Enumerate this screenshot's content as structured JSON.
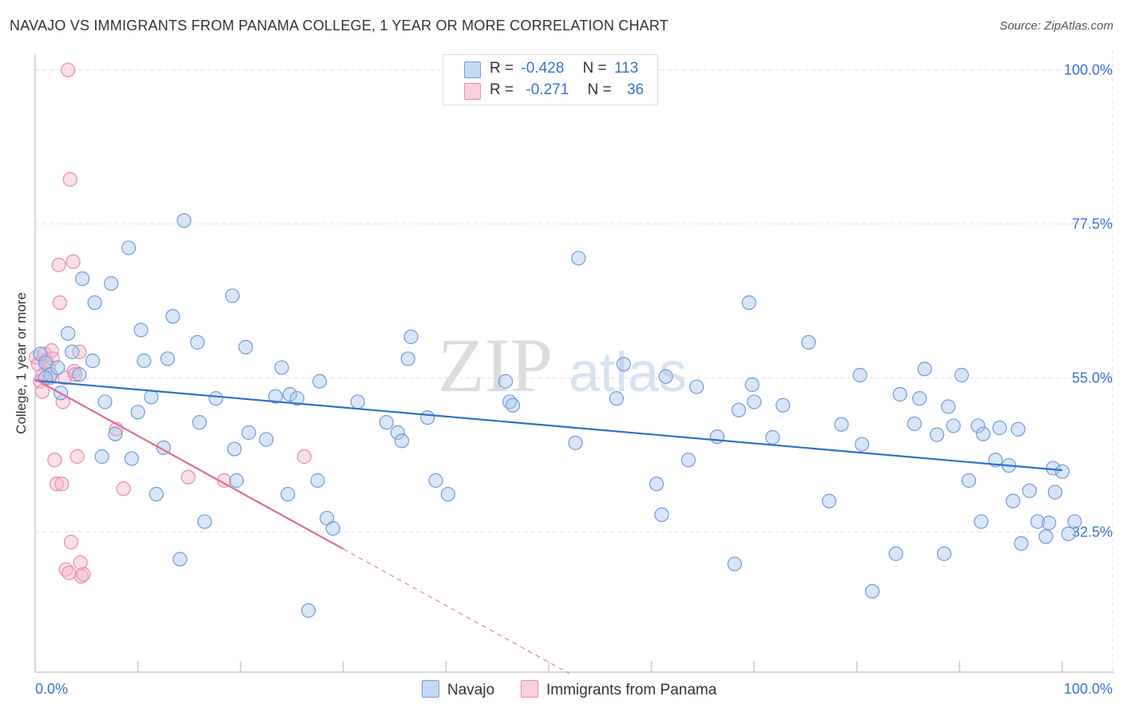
{
  "title": "NAVAJO VS IMMIGRANTS FROM PANAMA COLLEGE, 1 YEAR OR MORE CORRELATION CHART",
  "source": "Source: ZipAtlas.com",
  "watermark": {
    "zip": "ZIP",
    "atlas": "atlas"
  },
  "colors": {
    "navajo_fill": "#a9c7ee",
    "navajo_stroke": "#6f9bd8",
    "navajo_line": "#3070c8",
    "panama_fill": "#f5b9cd",
    "panama_stroke": "#e98aaa",
    "panama_line": "#e06a95",
    "tick_label": "#3b72c8",
    "grid": "#e2e2e2"
  },
  "legend": {
    "rows": [
      {
        "r_label": "R =",
        "r_value": "-0.428",
        "n_label": "N =",
        "n_value": "113"
      },
      {
        "r_label": "R =",
        "r_value": "-0.271",
        "n_label": "N =",
        "n_value": "36"
      }
    ]
  },
  "bottom_legend": {
    "navajo": "Navajo",
    "panama": "Immigrants from Panama"
  },
  "chart_data": {
    "type": "scatter",
    "title": "NAVAJO VS IMMIGRANTS FROM PANAMA COLLEGE, 1 YEAR OR MORE CORRELATION CHART",
    "xlabel": "",
    "ylabel": "College, 1 year or more",
    "xlim": [
      0,
      100
    ],
    "ylim": [
      12,
      103
    ],
    "x_tick_labels": [
      "0.0%",
      "100.0%"
    ],
    "y_ticks": [
      32.5,
      55.0,
      77.5,
      100.0
    ],
    "y_tick_labels": [
      "32.5%",
      "55.0%",
      "77.5%",
      "100.0%"
    ],
    "grid": true,
    "legend_position": "top-center",
    "series": [
      {
        "name": "Navajo",
        "r": -0.428,
        "n": 113,
        "trend": {
          "x": [
            0,
            100
          ],
          "y": [
            54.6,
            41.5
          ]
        },
        "points": [
          [
            0.5,
            58.5
          ],
          [
            1.0,
            57.2
          ],
          [
            1.5,
            55.5
          ],
          [
            1.0,
            55.0
          ],
          [
            2.2,
            56.5
          ],
          [
            2.5,
            52.8
          ],
          [
            3.2,
            61.5
          ],
          [
            3.6,
            58.8
          ],
          [
            4.3,
            55.5
          ],
          [
            4.6,
            69.5
          ],
          [
            5.6,
            57.5
          ],
          [
            5.8,
            66.0
          ],
          [
            6.5,
            43.5
          ],
          [
            6.8,
            51.5
          ],
          [
            7.4,
            68.8
          ],
          [
            7.8,
            46.8
          ],
          [
            9.1,
            74.0
          ],
          [
            9.4,
            43.2
          ],
          [
            10.0,
            50.0
          ],
          [
            10.3,
            62.0
          ],
          [
            10.6,
            57.5
          ],
          [
            11.3,
            52.2
          ],
          [
            11.8,
            38.0
          ],
          [
            12.5,
            44.8
          ],
          [
            12.9,
            57.8
          ],
          [
            13.4,
            64.0
          ],
          [
            14.1,
            28.5
          ],
          [
            14.5,
            78.0
          ],
          [
            15.8,
            60.2
          ],
          [
            16.0,
            48.5
          ],
          [
            16.5,
            34.0
          ],
          [
            17.6,
            52.0
          ],
          [
            19.2,
            67.0
          ],
          [
            19.4,
            44.6
          ],
          [
            19.6,
            40.0
          ],
          [
            20.5,
            59.5
          ],
          [
            20.8,
            47.0
          ],
          [
            22.5,
            46.0
          ],
          [
            23.4,
            52.3
          ],
          [
            24.0,
            56.5
          ],
          [
            24.6,
            38.0
          ],
          [
            24.8,
            52.6
          ],
          [
            25.5,
            52.0
          ],
          [
            26.6,
            21.0
          ],
          [
            27.5,
            40.0
          ],
          [
            27.7,
            54.5
          ],
          [
            28.4,
            34.5
          ],
          [
            29.0,
            33.0
          ],
          [
            31.4,
            51.5
          ],
          [
            34.2,
            48.5
          ],
          [
            35.3,
            47.0
          ],
          [
            35.7,
            45.8
          ],
          [
            36.3,
            57.8
          ],
          [
            36.6,
            61.0
          ],
          [
            38.2,
            49.2
          ],
          [
            39.0,
            40.0
          ],
          [
            40.2,
            38.0
          ],
          [
            45.8,
            54.5
          ],
          [
            46.2,
            51.5
          ],
          [
            46.5,
            51.0
          ],
          [
            52.6,
            45.5
          ],
          [
            52.9,
            72.5
          ],
          [
            56.6,
            52.0
          ],
          [
            57.3,
            57.0
          ],
          [
            60.5,
            39.5
          ],
          [
            61.0,
            35.0
          ],
          [
            61.4,
            55.2
          ],
          [
            63.6,
            43.0
          ],
          [
            64.4,
            53.7
          ],
          [
            66.4,
            46.4
          ],
          [
            68.1,
            27.8
          ],
          [
            68.5,
            50.3
          ],
          [
            69.5,
            66.0
          ],
          [
            69.8,
            54.0
          ],
          [
            70.0,
            51.5
          ],
          [
            71.8,
            46.3
          ],
          [
            72.8,
            51.0
          ],
          [
            75.3,
            60.2
          ],
          [
            77.3,
            37.0
          ],
          [
            78.5,
            48.2
          ],
          [
            80.3,
            55.4
          ],
          [
            80.5,
            45.3
          ],
          [
            81.5,
            23.8
          ],
          [
            83.8,
            29.3
          ],
          [
            84.2,
            52.6
          ],
          [
            85.6,
            48.3
          ],
          [
            86.1,
            52.0
          ],
          [
            86.6,
            56.3
          ],
          [
            87.8,
            46.7
          ],
          [
            88.5,
            29.3
          ],
          [
            88.9,
            50.8
          ],
          [
            89.4,
            48.0
          ],
          [
            90.2,
            55.4
          ],
          [
            90.9,
            40.0
          ],
          [
            91.8,
            48.0
          ],
          [
            92.1,
            34.0
          ],
          [
            92.3,
            46.8
          ],
          [
            93.5,
            43.0
          ],
          [
            93.9,
            47.7
          ],
          [
            94.8,
            42.2
          ],
          [
            95.2,
            37.0
          ],
          [
            95.7,
            47.5
          ],
          [
            96.0,
            30.8
          ],
          [
            96.8,
            38.5
          ],
          [
            97.6,
            34.0
          ],
          [
            98.4,
            31.8
          ],
          [
            98.7,
            33.8
          ],
          [
            99.1,
            41.8
          ],
          [
            99.3,
            38.3
          ],
          [
            100.0,
            41.3
          ],
          [
            100.6,
            32.2
          ],
          [
            101.2,
            34.0
          ]
        ]
      },
      {
        "name": "Immigrants from Panama",
        "r": -0.271,
        "n": 36,
        "trend": {
          "x": [
            0,
            30
          ],
          "y": [
            54.8,
            30.0
          ]
        },
        "trend_extension": {
          "x": [
            30,
            52
          ],
          "y": [
            30.0,
            11.8
          ]
        },
        "points": [
          [
            0.1,
            58.0
          ],
          [
            0.3,
            57.0
          ],
          [
            0.5,
            54.5
          ],
          [
            0.7,
            53.0
          ],
          [
            0.8,
            55.5
          ],
          [
            0.9,
            58.5
          ],
          [
            1.1,
            57.5
          ],
          [
            1.3,
            56.5
          ],
          [
            1.4,
            55.0
          ],
          [
            1.6,
            59.0
          ],
          [
            1.7,
            57.8
          ],
          [
            1.9,
            43.0
          ],
          [
            2.1,
            39.5
          ],
          [
            2.3,
            71.5
          ],
          [
            2.4,
            66.0
          ],
          [
            2.6,
            39.5
          ],
          [
            2.7,
            51.5
          ],
          [
            2.9,
            55.0
          ],
          [
            3.0,
            27.0
          ],
          [
            3.2,
            100.0
          ],
          [
            3.3,
            26.5
          ],
          [
            3.4,
            84.0
          ],
          [
            3.5,
            31.0
          ],
          [
            3.7,
            72.0
          ],
          [
            3.8,
            56.0
          ],
          [
            3.9,
            55.5
          ],
          [
            4.1,
            43.5
          ],
          [
            4.3,
            58.8
          ],
          [
            4.4,
            28.0
          ],
          [
            4.5,
            26.0
          ],
          [
            4.7,
            26.3
          ],
          [
            7.9,
            47.5
          ],
          [
            8.6,
            38.8
          ],
          [
            14.9,
            40.5
          ],
          [
            18.4,
            40.0
          ],
          [
            26.2,
            43.5
          ]
        ]
      }
    ]
  }
}
